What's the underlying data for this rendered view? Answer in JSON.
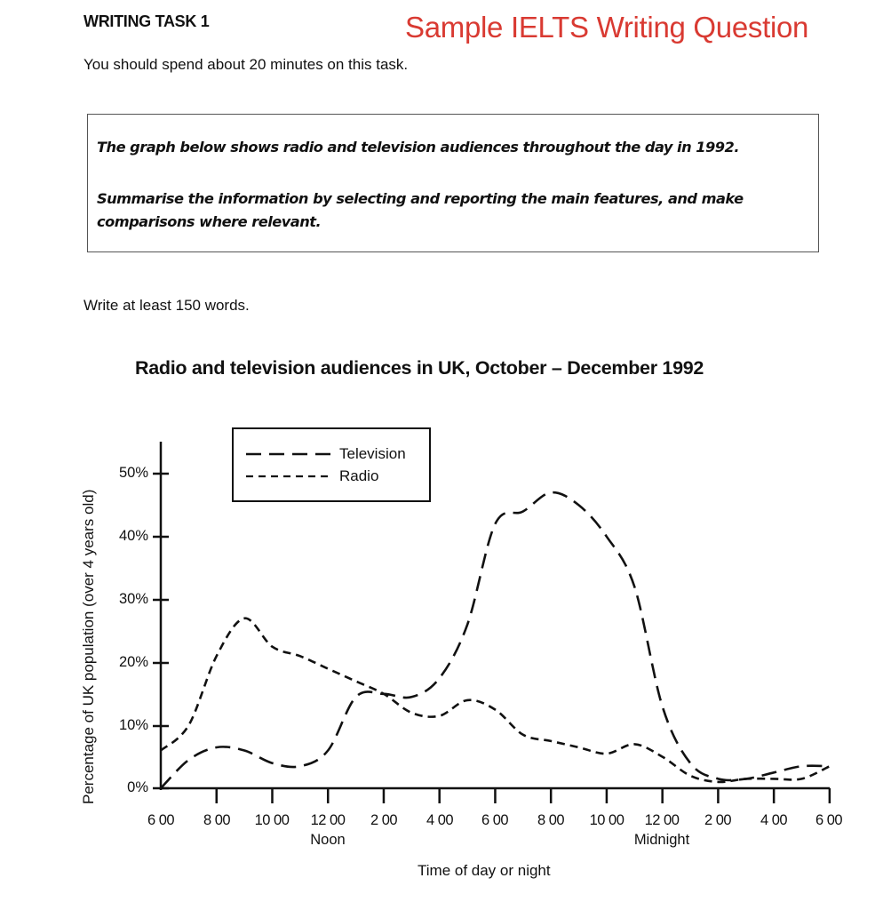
{
  "header": {
    "task_heading": "WRITING TASK 1",
    "sample_label": "Sample IELTS Writing Question",
    "sample_label_color": "#d93a32",
    "time_note": "You should spend about 20 minutes on this task."
  },
  "prompt": {
    "line1": "The graph below shows radio and television audiences throughout the day in 1992.",
    "line2": "Summarise the information by selecting and reporting the main features, and make comparisons where relevant."
  },
  "word_note": "Write at least 150 words.",
  "chart_data": {
    "type": "line",
    "title": "Radio and television audiences in UK, October – December 1992",
    "xlabel": "Time of day or night",
    "ylabel": "Percentage of UK population (over 4 years old)",
    "ylim": [
      0,
      55
    ],
    "yticks": [
      "0%",
      "10%",
      "20%",
      "30%",
      "40%",
      "50%"
    ],
    "x_ticks": [
      "6 00",
      "8 00",
      "10 00",
      "12 00",
      "2 00",
      "4 00",
      "6 00",
      "8 00",
      "10 00",
      "12 00",
      "2 00",
      "4 00",
      "6 00"
    ],
    "x_sublabels": {
      "noon": "Noon",
      "midnight": "Midnight"
    },
    "grid": false,
    "legend_position": "top-left inside",
    "x": [
      "6:00",
      "7:00",
      "8:00",
      "9:00",
      "10:00",
      "11:00",
      "12:00",
      "13:00",
      "14:00",
      "15:00",
      "16:00",
      "17:00",
      "18:00",
      "19:00",
      "20:00",
      "21:00",
      "22:00",
      "23:00",
      "0:00",
      "1:00",
      "2:00",
      "3:00",
      "4:00",
      "5:00",
      "6:00"
    ],
    "series": [
      {
        "name": "Television",
        "style": "long-dash",
        "values": [
          0,
          4.5,
          6.5,
          6,
          4,
          3.5,
          6,
          14.5,
          15,
          14.5,
          17.5,
          26,
          42,
          44,
          47,
          45,
          40,
          32,
          13,
          4,
          1.5,
          1.5,
          2.5,
          3.5,
          3.5
        ]
      },
      {
        "name": "Radio",
        "style": "short-dash",
        "values": [
          6,
          10,
          21,
          27,
          22.5,
          21,
          19,
          17,
          15,
          12,
          11.5,
          14,
          12.5,
          8.5,
          7.5,
          6.5,
          5.5,
          7,
          5,
          2,
          1,
          1.5,
          1.5,
          1.5,
          3.5
        ]
      }
    ]
  },
  "legend": {
    "items": [
      {
        "label": "Television"
      },
      {
        "label": "Radio"
      }
    ]
  }
}
